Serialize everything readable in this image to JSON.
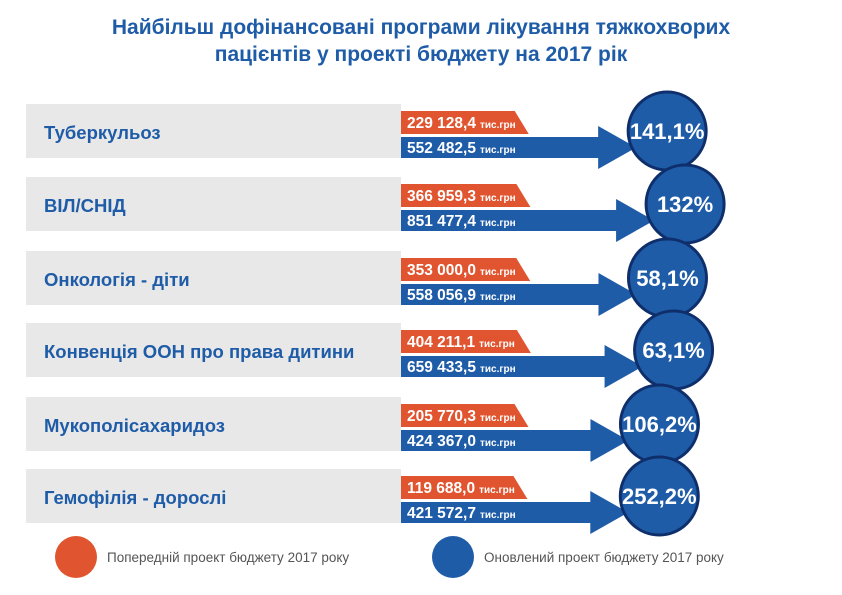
{
  "title": {
    "line1": "Найбільш дофінансовані програми лікування тяжкохворих",
    "line2": "пацієнтів у проекті бюджету на 2017 рік"
  },
  "colors": {
    "previous": "#e0552f",
    "updated": "#1f5ca8",
    "label_band": "#e8e8e8",
    "title": "#1f5ca8"
  },
  "legend": {
    "previous": "Попередній проект бюджету 2017 року",
    "updated": "Оновлений проект бюджету 2017 року"
  },
  "chart_data": {
    "type": "bar",
    "unit": "тис.грн",
    "categories": [
      "Туберкульоз",
      "ВІЛ/СНІД",
      "Онкологія - діти",
      "Конвенція ООН про права дитини",
      "Мукополісахаридоз",
      "Гемофілія - дорослі"
    ],
    "series": [
      {
        "name": "Попередній проект бюджету 2017 року",
        "values": [
          229128.4,
          366959.3,
          353000.0,
          404211.1,
          205770.3,
          119688.0
        ],
        "labels": [
          "229 128,4",
          "366 959,3",
          "353 000,0",
          "404 211,1",
          "205 770,3",
          "119 688,0"
        ]
      },
      {
        "name": "Оновлений проект бюджету 2017 року",
        "values": [
          552482.5,
          851477.4,
          558056.9,
          659433.5,
          424367.0,
          421572.7
        ],
        "labels": [
          "552 482,5",
          "851 477,4",
          "558 056,9",
          "659 433,5",
          "424 367,0",
          "421 572,7"
        ]
      }
    ],
    "growth": [
      "141,1%",
      "132%",
      "58,1%",
      "63,1%",
      "106,2%",
      "252,2%"
    ],
    "growth_values": [
      141.1,
      132,
      58.1,
      63.1,
      106.2,
      252.2
    ]
  }
}
